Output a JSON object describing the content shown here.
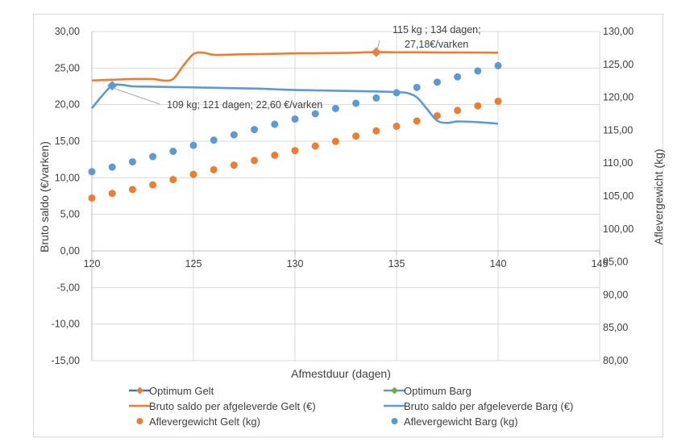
{
  "chart_data": {
    "type": "line",
    "xlabel": "Afmestduur (dagen)",
    "ylabel": "Bruto saldo (€/varken)",
    "y2label": "Aflevergewicht (kg)",
    "xlim": [
      120,
      145
    ],
    "ylim": [
      -15,
      30
    ],
    "y2lim": [
      80,
      130
    ],
    "x_ticks": [
      120,
      125,
      130,
      135,
      140,
      145
    ],
    "x_tick_labels": [
      "120",
      "125",
      "130",
      "135",
      "140",
      "145"
    ],
    "y_ticks": [
      30,
      25,
      20,
      15,
      10,
      5,
      0,
      -5,
      -10,
      -15
    ],
    "y_tick_labels": [
      "30,00",
      "25,00",
      "20,00",
      "15,00",
      "10,00",
      "5,00",
      "0,00",
      "-5,00",
      "-10,00",
      "-15,00"
    ],
    "y2_ticks": [
      130,
      125,
      120,
      115,
      110,
      105,
      100,
      95,
      90,
      85,
      80
    ],
    "y2_tick_labels": [
      "130,00",
      "125,00",
      "120,00",
      "115,00",
      "110,00",
      "105,00",
      "100,00",
      "95,00",
      "90,00",
      "85,00",
      "80,00"
    ],
    "colors": {
      "gelt": "#ED7D31",
      "barg": "#5B9BD5",
      "optimum_gelt": "#4472C4",
      "optimum_barg": "#70AD47",
      "grid": "#d9d9d9",
      "axis": "#bfbfbf"
    },
    "series": [
      {
        "name": "Bruto saldo per afgeleverde Gelt (€)",
        "kind": "line",
        "axis": "left",
        "x": [
          120,
          121,
          122,
          123,
          123.5,
          124,
          124.5,
          125,
          125.5,
          126,
          127,
          128,
          129,
          130,
          131,
          132,
          133,
          134,
          135,
          136,
          137,
          138,
          139,
          140
        ],
        "values": [
          23.3,
          23.4,
          23.5,
          23.5,
          23.3,
          23.5,
          25.3,
          26.9,
          27.1,
          26.8,
          26.85,
          26.9,
          26.95,
          27.0,
          27.02,
          27.05,
          27.1,
          27.18,
          27.15,
          27.15,
          27.13,
          27.12,
          27.11,
          27.1
        ]
      },
      {
        "name": "Bruto saldo per afgeleverde Barg (€)",
        "kind": "line",
        "axis": "left",
        "x": [
          120,
          120.5,
          121,
          121.5,
          122,
          123,
          124,
          125,
          126,
          127,
          128,
          129,
          130,
          131,
          132,
          133,
          134,
          135,
          135.5,
          136,
          136.5,
          137,
          137.5,
          138,
          139,
          140
        ],
        "values": [
          19.5,
          21.2,
          22.6,
          22.7,
          22.5,
          22.45,
          22.4,
          22.35,
          22.3,
          22.25,
          22.2,
          22.1,
          22.0,
          21.95,
          21.9,
          21.85,
          21.8,
          21.7,
          21.6,
          21.0,
          19.4,
          17.8,
          17.5,
          17.7,
          17.6,
          17.4
        ]
      },
      {
        "name": "Aflevergewicht  Gelt (kg)",
        "kind": "scatter",
        "axis": "right",
        "x": [
          120,
          121,
          122,
          123,
          124,
          125,
          126,
          127,
          128,
          129,
          130,
          131,
          132,
          133,
          134,
          135,
          136,
          137,
          138,
          139,
          140
        ],
        "values": [
          104.7,
          105.4,
          106.0,
          106.7,
          107.5,
          108.3,
          109.0,
          109.7,
          110.4,
          111.2,
          111.9,
          112.6,
          113.3,
          114.1,
          114.9,
          115.6,
          116.4,
          117.2,
          118.0,
          118.7,
          119.4
        ]
      },
      {
        "name": "Aflevergewicht Barg (kg)",
        "kind": "scatter",
        "axis": "right",
        "x": [
          120,
          121,
          122,
          123,
          124,
          125,
          126,
          127,
          128,
          129,
          130,
          131,
          132,
          133,
          134,
          135,
          136,
          137,
          138,
          139,
          140
        ],
        "values": [
          108.7,
          109.4,
          110.2,
          111.0,
          111.8,
          112.7,
          113.5,
          114.3,
          115.1,
          115.9,
          116.7,
          117.5,
          118.3,
          119.1,
          119.9,
          120.7,
          121.5,
          122.3,
          123.1,
          124.0,
          124.8
        ]
      },
      {
        "name": "Optimum Gelt",
        "kind": "marker",
        "axis": "left",
        "x": [
          134
        ],
        "values": [
          27.18
        ]
      },
      {
        "name": "Optimum Barg",
        "kind": "marker",
        "axis": "left",
        "x": [
          121
        ],
        "values": [
          22.6
        ]
      }
    ],
    "annotations": [
      {
        "series": "Optimum Gelt",
        "lines": [
          "115 kg ; 134 dagen;",
          "27,18€/varken"
        ]
      },
      {
        "series": "Optimum Barg",
        "lines": [
          "109 kg; 121 dagen; 22,60 €/varken"
        ]
      }
    ],
    "legend": {
      "position": "bottom",
      "items": [
        {
          "label": "Optimum Gelt",
          "style": "line-diamond",
          "line_color": "#4472C4",
          "marker_color": "#ED7D31"
        },
        {
          "label": "Optimum Barg",
          "style": "line-diamond",
          "line_color": "#5B9BD5",
          "marker_color": "#70AD47"
        },
        {
          "label": "Bruto saldo per afgeleverde Gelt (€)",
          "style": "line",
          "line_color": "#ED7D31"
        },
        {
          "label": "Bruto saldo per afgeleverde Barg (€)",
          "style": "line",
          "line_color": "#5B9BD5"
        },
        {
          "label": "Aflevergewicht  Gelt (kg)",
          "style": "dot",
          "marker_color": "#ED7D31"
        },
        {
          "label": "Aflevergewicht Barg (kg)",
          "style": "dot",
          "marker_color": "#5B9BD5"
        }
      ]
    }
  }
}
